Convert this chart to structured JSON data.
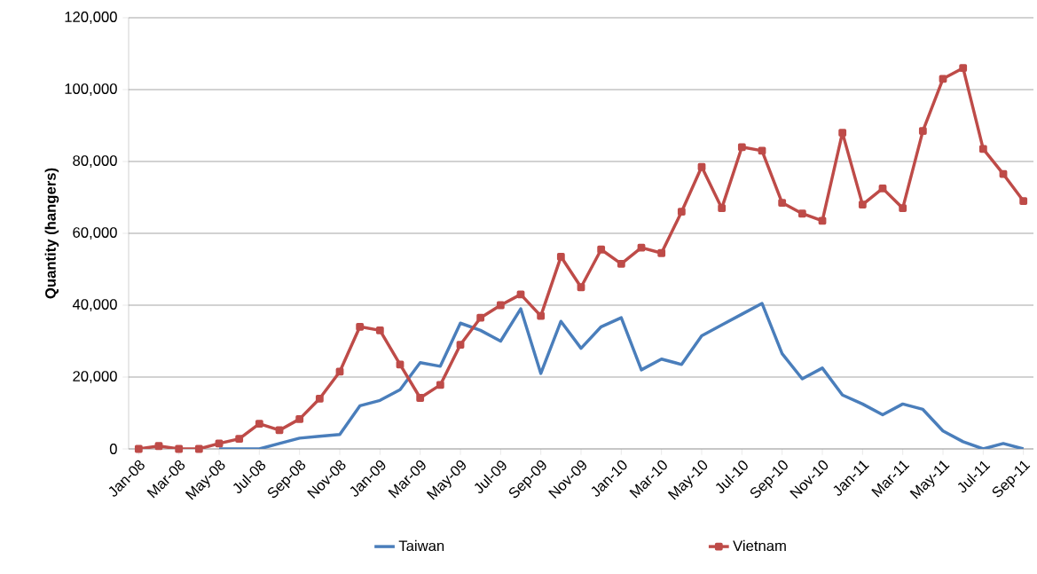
{
  "chart_data": {
    "type": "line",
    "ylabel": "Quantity (hangers)",
    "categories": [
      "Jan-08",
      null,
      "Mar-08",
      null,
      "May-08",
      null,
      "Jul-08",
      null,
      "Sep-08",
      null,
      "Nov-08",
      null,
      "Jan-09",
      null,
      "Mar-09",
      null,
      "May-09",
      null,
      "Jul-09",
      null,
      "Sep-09",
      null,
      "Nov-09",
      null,
      "Jan-10",
      null,
      "Mar-10",
      null,
      "May-10",
      null,
      "Jul-10",
      null,
      "Sep-10",
      null,
      "Nov-10",
      null,
      "Jan-11",
      null,
      "Mar-11",
      null,
      "May-11",
      null,
      "Jul-11",
      null,
      "Sep-11"
    ],
    "series": [
      {
        "name": "Taiwan",
        "color": "#4a7ebb",
        "marker": "none",
        "values": [
          null,
          null,
          null,
          null,
          0,
          0,
          0,
          1500,
          3000,
          3500,
          4000,
          12000,
          13500,
          16500,
          24000,
          23000,
          35000,
          33000,
          30000,
          39000,
          21000,
          35500,
          28000,
          34000,
          36500,
          22000,
          25000,
          23500,
          31500,
          34500,
          37500,
          40500,
          26500,
          19500,
          22500,
          15000,
          12500,
          9500,
          12500,
          11000,
          5000,
          2000,
          0,
          1500,
          0
        ]
      },
      {
        "name": "Vietnam",
        "color": "#be4b48",
        "marker": "square",
        "values": [
          0,
          800,
          0,
          0,
          1500,
          2800,
          7000,
          5200,
          8300,
          14000,
          21500,
          34000,
          33000,
          23500,
          14200,
          17800,
          29000,
          36500,
          40000,
          43000,
          37000,
          53500,
          45000,
          55500,
          51500,
          56000,
          54500,
          66000,
          78500,
          67000,
          84000,
          83000,
          68500,
          65500,
          63500,
          88000,
          68000,
          72500,
          67000,
          88500,
          103000,
          106000,
          83500,
          76500,
          69000
        ]
      }
    ],
    "ylim": [
      0,
      120000
    ],
    "yticks": [
      {
        "value": 0,
        "label": "0"
      },
      {
        "value": 20000,
        "label": "20,000"
      },
      {
        "value": 40000,
        "label": "40,000"
      },
      {
        "value": 60000,
        "label": "60,000"
      },
      {
        "value": 80000,
        "label": "80,000"
      },
      {
        "value": 100000,
        "label": "100,000"
      },
      {
        "value": 120000,
        "label": "120,000"
      }
    ],
    "grid": "y",
    "legend": "bottom",
    "line_style": "solid"
  }
}
